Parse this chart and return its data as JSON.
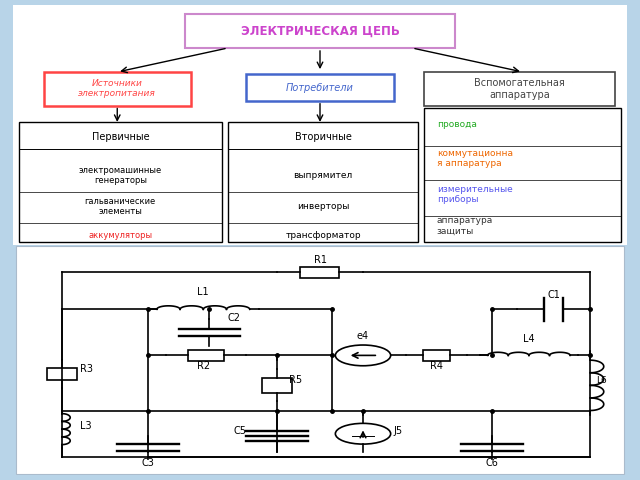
{
  "bg_color": "#b8d4e8",
  "title_text": "ЭЛЕКТРИЧЕСКАЯ ЦЕПЬ",
  "title_color": "#cc44cc",
  "box1_text": "Источники\nэлектропитания",
  "box1_color": "#ff4444",
  "box2_text": "Потребители",
  "box2_color": "#4466cc",
  "box3_text": "Вспомогательная\nаппаратура",
  "box3_color": "#444444",
  "col1_header": "Первичные",
  "col1_items": [
    "электромашинные\nгенераторы",
    "гальванические\nэлементы",
    "аккумуляторы"
  ],
  "col1_item_colors": [
    "#000000",
    "#000000",
    "#ee2222"
  ],
  "col2_header": "Вторичные",
  "col2_items": [
    "выпрямител",
    "инверторы",
    "трансформатор"
  ],
  "col2_item_colors": [
    "#000000",
    "#000000",
    "#000000"
  ],
  "col3_items": [
    "провода",
    "коммутационна\nя аппаратура",
    "измерительные\nприборы",
    "аппаратура\nзащиты"
  ],
  "col3_colors": [
    "#22aa22",
    "#ee6600",
    "#5555ee",
    "#333333"
  ]
}
